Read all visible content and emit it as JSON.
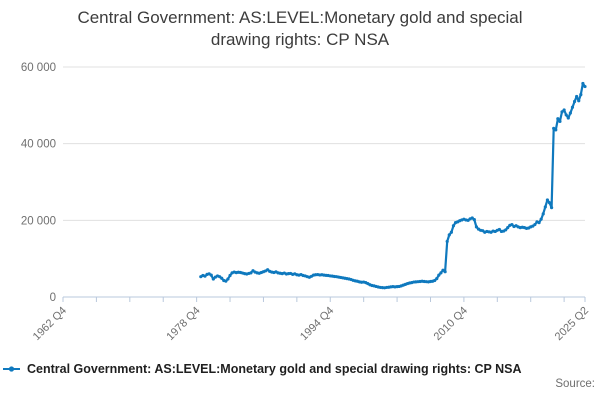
{
  "title": "Central Government: AS:LEVEL:Monetary gold and special drawing rights: CP NSA",
  "legend": {
    "label": "Central Government: AS:LEVEL:Monetary gold and special drawing rights: CP NSA"
  },
  "source_label": "Source:",
  "colors": {
    "line": "#0f79be",
    "grid": "#e0e0e0",
    "axis": "#b9c8dc",
    "tick_text": "#6f6f6f",
    "title_text": "#3c3c3c"
  },
  "chart_data": {
    "type": "line",
    "title": "Central Government: AS:LEVEL:Monetary gold and special drawing rights: CP NSA",
    "xlabel": "",
    "ylabel": "",
    "grid": "horizontal",
    "legend_position": "bottom-left",
    "x_unit": "quarter (decimal years, Q1=.00 Q2=.25 Q3=.50 Q4=.75)",
    "x_start": 1979.25,
    "x_step": 0.25,
    "x_start_label": "1979 Q2",
    "x_end_label": "2025 Q2",
    "xlim": [
      1962.75,
      2025.25
    ],
    "ylim": [
      0,
      60000
    ],
    "yticks": [
      0,
      20000,
      40000,
      60000
    ],
    "ytick_labels": [
      "0",
      "20 000",
      "40 000",
      "60 000"
    ],
    "xticks_minor": [
      1962.75,
      1966.75,
      1970.75,
      1974.75,
      1978.75,
      1982.75,
      1986.75,
      1990.75,
      1994.75,
      1998.75,
      2002.75,
      2006.75,
      2010.75,
      2014.75,
      2018.75,
      2022.75,
      2025.25
    ],
    "xtick_labels": [
      {
        "t": 1962.75,
        "label": "1962 Q4"
      },
      {
        "t": 1978.75,
        "label": "1978 Q4"
      },
      {
        "t": 1994.75,
        "label": "1994 Q4"
      },
      {
        "t": 2010.75,
        "label": "2010 Q4"
      },
      {
        "t": 2025.25,
        "label": "2025 Q2"
      }
    ],
    "series": [
      {
        "name": "Central Government: AS:LEVEL:Monetary gold and special drawing rights: CP NSA",
        "values": [
          5300,
          5600,
          5450,
          5900,
          6050,
          5700,
          4700,
          5200,
          5500,
          5300,
          4900,
          4300,
          4150,
          4700,
          5600,
          6300,
          6500,
          6350,
          6450,
          6400,
          6250,
          6100,
          6000,
          6150,
          6300,
          6850,
          6500,
          6300,
          6200,
          6400,
          6600,
          6800,
          7100,
          6700,
          6500,
          6400,
          6550,
          6300,
          6200,
          6100,
          6250,
          6000,
          6100,
          6150,
          5900,
          6050,
          5800,
          5700,
          5850,
          5600,
          5500,
          5300,
          5150,
          5400,
          5700,
          5800,
          5850,
          5750,
          5800,
          5700,
          5650,
          5600,
          5500,
          5450,
          5350,
          5300,
          5200,
          5100,
          5000,
          4900,
          4800,
          4700,
          4550,
          4350,
          4200,
          4100,
          3950,
          3850,
          3900,
          3750,
          3500,
          3200,
          3000,
          2900,
          2750,
          2600,
          2500,
          2450,
          2400,
          2500,
          2550,
          2650,
          2700,
          2650,
          2700,
          2750,
          2900,
          3100,
          3300,
          3500,
          3650,
          3750,
          3900,
          3950,
          4000,
          4050,
          4100,
          4050,
          4000,
          3950,
          4050,
          4100,
          4300,
          4800,
          5700,
          6300,
          7000,
          6600,
          14500,
          16200,
          16900,
          18600,
          19400,
          19600,
          19900,
          20100,
          20300,
          20100,
          20000,
          20400,
          20600,
          20200,
          18300,
          17700,
          17400,
          17300,
          16900,
          17100,
          17000,
          16900,
          17200,
          17100,
          17400,
          17600,
          17100,
          17200,
          17500,
          18100,
          18700,
          18900,
          18400,
          18600,
          18300,
          18100,
          18200,
          18100,
          17900,
          18000,
          18300,
          18500,
          18900,
          19600,
          19400,
          20300,
          21700,
          23500,
          25300,
          24600,
          23300,
          44000,
          43600,
          46500,
          45800,
          48300,
          48800,
          47500,
          46700,
          48000,
          49500,
          51000,
          52300,
          51200,
          52800,
          55700,
          54900
        ]
      }
    ]
  }
}
